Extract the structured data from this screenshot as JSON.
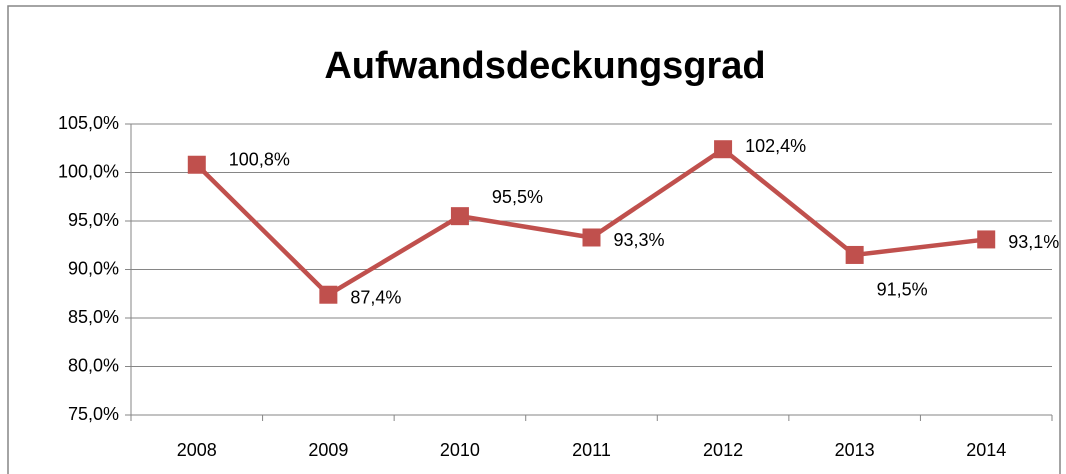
{
  "chart_data": {
    "type": "line",
    "title": "Aufwandsdeckungsgrad",
    "categories": [
      "2008",
      "2009",
      "2010",
      "2011",
      "2012",
      "2013",
      "2014"
    ],
    "series": [
      {
        "name": "Aufwandsdeckungsgrad",
        "color": "#c0504d",
        "values": [
          100.8,
          87.4,
          95.5,
          93.3,
          102.4,
          91.5,
          93.1
        ],
        "value_labels": [
          "100,8%",
          "87,4%",
          "95,5%",
          "93,3%",
          "102,4%",
          "91,5%",
          "93,1%"
        ]
      }
    ],
    "ylim": [
      75,
      105
    ],
    "yticks": [
      {
        "value": 75,
        "label": "75,0%"
      },
      {
        "value": 80,
        "label": "80,0%"
      },
      {
        "value": 85,
        "label": "85,0%"
      },
      {
        "value": 90,
        "label": "90,0%"
      },
      {
        "value": 95,
        "label": "95,0%"
      },
      {
        "value": 100,
        "label": "100,0%"
      },
      {
        "value": 105,
        "label": "105,0%"
      }
    ],
    "grid": true
  }
}
